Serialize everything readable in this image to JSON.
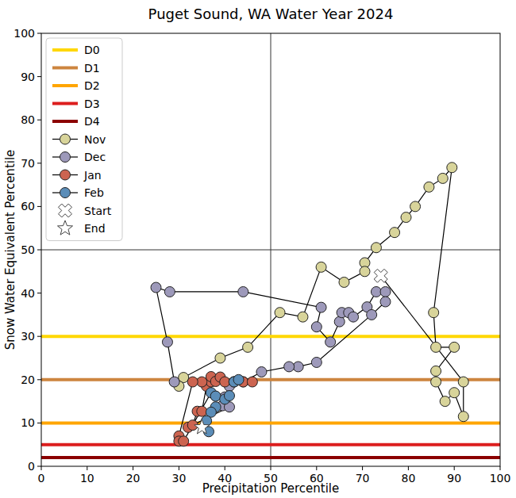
{
  "chart_data": {
    "type": "scatter",
    "title": "Puget Sound, WA Water Year 2024",
    "x_label": "Precipitation Percentile",
    "y_label": "Snow Water Equivalent Percentile",
    "xlim": [
      0,
      100
    ],
    "ylim": [
      0,
      100
    ],
    "xticks": [
      0,
      10,
      20,
      30,
      40,
      50,
      60,
      70,
      80,
      90,
      100
    ],
    "yticks": [
      0,
      10,
      20,
      30,
      40,
      50,
      60,
      70,
      80,
      90,
      100
    ],
    "grid": false,
    "legend": "upper left",
    "line_style": "solid",
    "crosshair": {
      "x": 50,
      "y": 50
    },
    "reference_lines": [
      {
        "name": "D0",
        "value": 30,
        "color": "#ffd700"
      },
      {
        "name": "D1",
        "value": 20,
        "color": "#cd853f"
      },
      {
        "name": "D2",
        "value": 10,
        "color": "#ffa500"
      },
      {
        "name": "D3",
        "value": 5,
        "color": "#dc1e1e"
      },
      {
        "name": "D4",
        "value": 2,
        "color": "#8b0000"
      }
    ],
    "series": [
      {
        "name": "Nov",
        "color": "#d8d49a",
        "marker": "circle",
        "x": [
          92,
          92,
          90,
          88,
          86,
          86,
          90,
          86,
          85.5,
          89.5,
          87.5,
          84.5,
          81.5,
          79.5,
          77,
          73,
          70.5,
          70.5,
          66,
          61,
          57,
          52,
          45,
          39,
          31,
          30
        ],
        "values": [
          19.5,
          11.5,
          17,
          15,
          19.5,
          22,
          27.5,
          27.5,
          35.5,
          69,
          66.5,
          64.5,
          60,
          57.5,
          54,
          50.5,
          47,
          45,
          42.5,
          46,
          34.5,
          35.5,
          27.5,
          25,
          20.5,
          18.5
        ]
      },
      {
        "name": "Dec",
        "color": "#9d99ba",
        "marker": "circle",
        "x": [
          29,
          27.5,
          25,
          28,
          44,
          61,
          60,
          63,
          65,
          65.5,
          67,
          68,
          71,
          73,
          75,
          75,
          72,
          60,
          56,
          54,
          48,
          44,
          42,
          41,
          40,
          39.5,
          41
        ],
        "values": [
          19.5,
          28.7,
          41.3,
          40.3,
          40.3,
          36.7,
          32.2,
          28.7,
          33.4,
          35.5,
          35.5,
          34.5,
          36.8,
          40.3,
          40.3,
          38,
          35,
          24,
          23,
          23,
          21.8,
          19.5,
          19.5,
          18.5,
          16,
          14,
          13.7
        ]
      },
      {
        "name": "Jan",
        "color": "#cc6450",
        "marker": "circle",
        "x": [
          32,
          33,
          34,
          35,
          36,
          37,
          37,
          38,
          39,
          40,
          42,
          44,
          46,
          35,
          33,
          30,
          30,
          31
        ],
        "values": [
          9,
          9.5,
          12.7,
          12.7,
          18.5,
          19.5,
          20.7,
          19.6,
          20.6,
          19.5,
          19.5,
          19.5,
          19.5,
          19.5,
          19.5,
          7,
          5.8,
          5.8
        ]
      },
      {
        "name": "Feb",
        "color": "#5b8db8",
        "marker": "circle",
        "x": [
          37,
          38,
          40,
          41,
          42,
          43,
          38,
          37,
          36,
          36.5
        ],
        "values": [
          17,
          16.2,
          15.5,
          16.3,
          19.5,
          20,
          13.7,
          12.5,
          10.5,
          8
        ]
      }
    ],
    "start": {
      "name": "Start",
      "x": 74,
      "y": 44,
      "marker": "X"
    },
    "end": {
      "name": "End",
      "x": 35,
      "y": 9,
      "marker": "star"
    }
  }
}
